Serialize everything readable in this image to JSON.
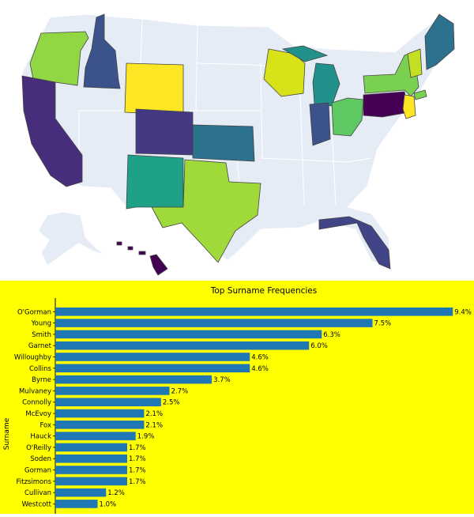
{
  "chart_data": [
    {
      "type": "choropleth",
      "colormap": "viridis",
      "base_color": "#e5ecf6",
      "regions": [
        {
          "state": "Oregon",
          "color": "#90d743"
        },
        {
          "state": "Idaho",
          "color": "#3b528b"
        },
        {
          "state": "Wyoming",
          "color": "#fde725"
        },
        {
          "state": "California",
          "color": "#472d7b"
        },
        {
          "state": "Colorado",
          "color": "#443983"
        },
        {
          "state": "Kansas",
          "color": "#2c728e"
        },
        {
          "state": "New Mexico",
          "color": "#1fa187"
        },
        {
          "state": "Texas",
          "color": "#9fda3a"
        },
        {
          "state": "Wisconsin",
          "color": "#d8e219"
        },
        {
          "state": "Michigan",
          "color": "#21918c"
        },
        {
          "state": "Indiana",
          "color": "#3b528b"
        },
        {
          "state": "Ohio",
          "color": "#5ec962"
        },
        {
          "state": "Pennsylvania",
          "color": "#440154"
        },
        {
          "state": "New York",
          "color": "#7ad151"
        },
        {
          "state": "Vermont",
          "color": "#c2df23"
        },
        {
          "state": "Maine",
          "color": "#2c728e"
        },
        {
          "state": "New Jersey",
          "color": "#fde725"
        },
        {
          "state": "Connecticut",
          "color": "#7ad151"
        },
        {
          "state": "Florida",
          "color": "#414487"
        },
        {
          "state": "Hawaii",
          "color": "#440154"
        }
      ]
    },
    {
      "type": "bar",
      "orientation": "horizontal",
      "title": "Top Surname Frequencies",
      "ylabel": "Surname",
      "bar_color": "#1f77b4",
      "xlim": [
        0,
        9.9
      ],
      "categories": [
        "O'Gorman",
        "Young",
        "Smith",
        "Garnet",
        "Willoughby",
        "Collins",
        "Byrne",
        "Mulvaney",
        "Connolly",
        "McEvoy",
        "Fox",
        "Hauck",
        "O'Reilly",
        "Soden",
        "Gorman",
        "Fitzsimons",
        "Cullivan",
        "Westcott"
      ],
      "values": [
        9.4,
        7.5,
        6.3,
        6.0,
        4.6,
        4.6,
        3.7,
        2.7,
        2.5,
        2.1,
        2.1,
        1.9,
        1.7,
        1.7,
        1.7,
        1.7,
        1.2,
        1.0
      ],
      "labels": [
        "9.4%",
        "7.5%",
        "6.3%",
        "6.0%",
        "4.6%",
        "4.6%",
        "3.7%",
        "2.7%",
        "2.5%",
        "2.1%",
        "2.1%",
        "1.9%",
        "1.7%",
        "1.7%",
        "1.7%",
        "1.7%",
        "1.2%",
        "1.0%"
      ]
    }
  ]
}
